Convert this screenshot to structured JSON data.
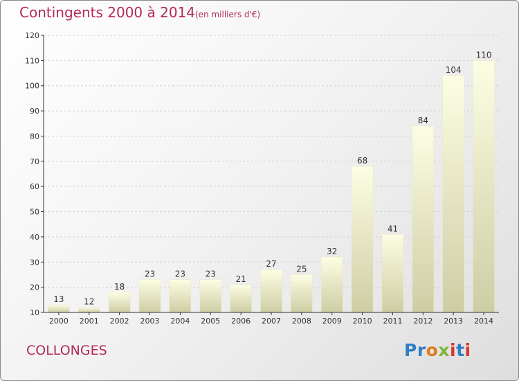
{
  "header": {
    "title": "Contingents 2000 à 2014",
    "subtitle": "(en milliers d'€)"
  },
  "footer": {
    "place": "COLLONGES",
    "logo_text": "Proxiti"
  },
  "colors": {
    "title": "#b5275c",
    "bar_top": "#fdfde3",
    "bar_bottom": "#cfcfa8",
    "axis": "#333333",
    "grid": "#cfcfcf"
  },
  "chart_data": {
    "type": "bar",
    "title": "Contingents 2000 à 2014",
    "subtitle": "(en milliers d'€)",
    "xlabel": "",
    "ylabel": "",
    "categories": [
      "2000",
      "2001",
      "2002",
      "2003",
      "2004",
      "2005",
      "2006",
      "2007",
      "2008",
      "2009",
      "2010",
      "2011",
      "2012",
      "2013",
      "2014"
    ],
    "values": [
      13,
      12,
      18,
      23,
      23,
      23,
      21,
      27,
      25,
      32,
      68,
      41,
      84,
      104,
      110
    ],
    "ylim": [
      10,
      120
    ],
    "yticks": [
      10,
      20,
      30,
      40,
      50,
      60,
      70,
      80,
      90,
      100,
      110,
      120
    ],
    "grid": true,
    "data_labels": true
  }
}
